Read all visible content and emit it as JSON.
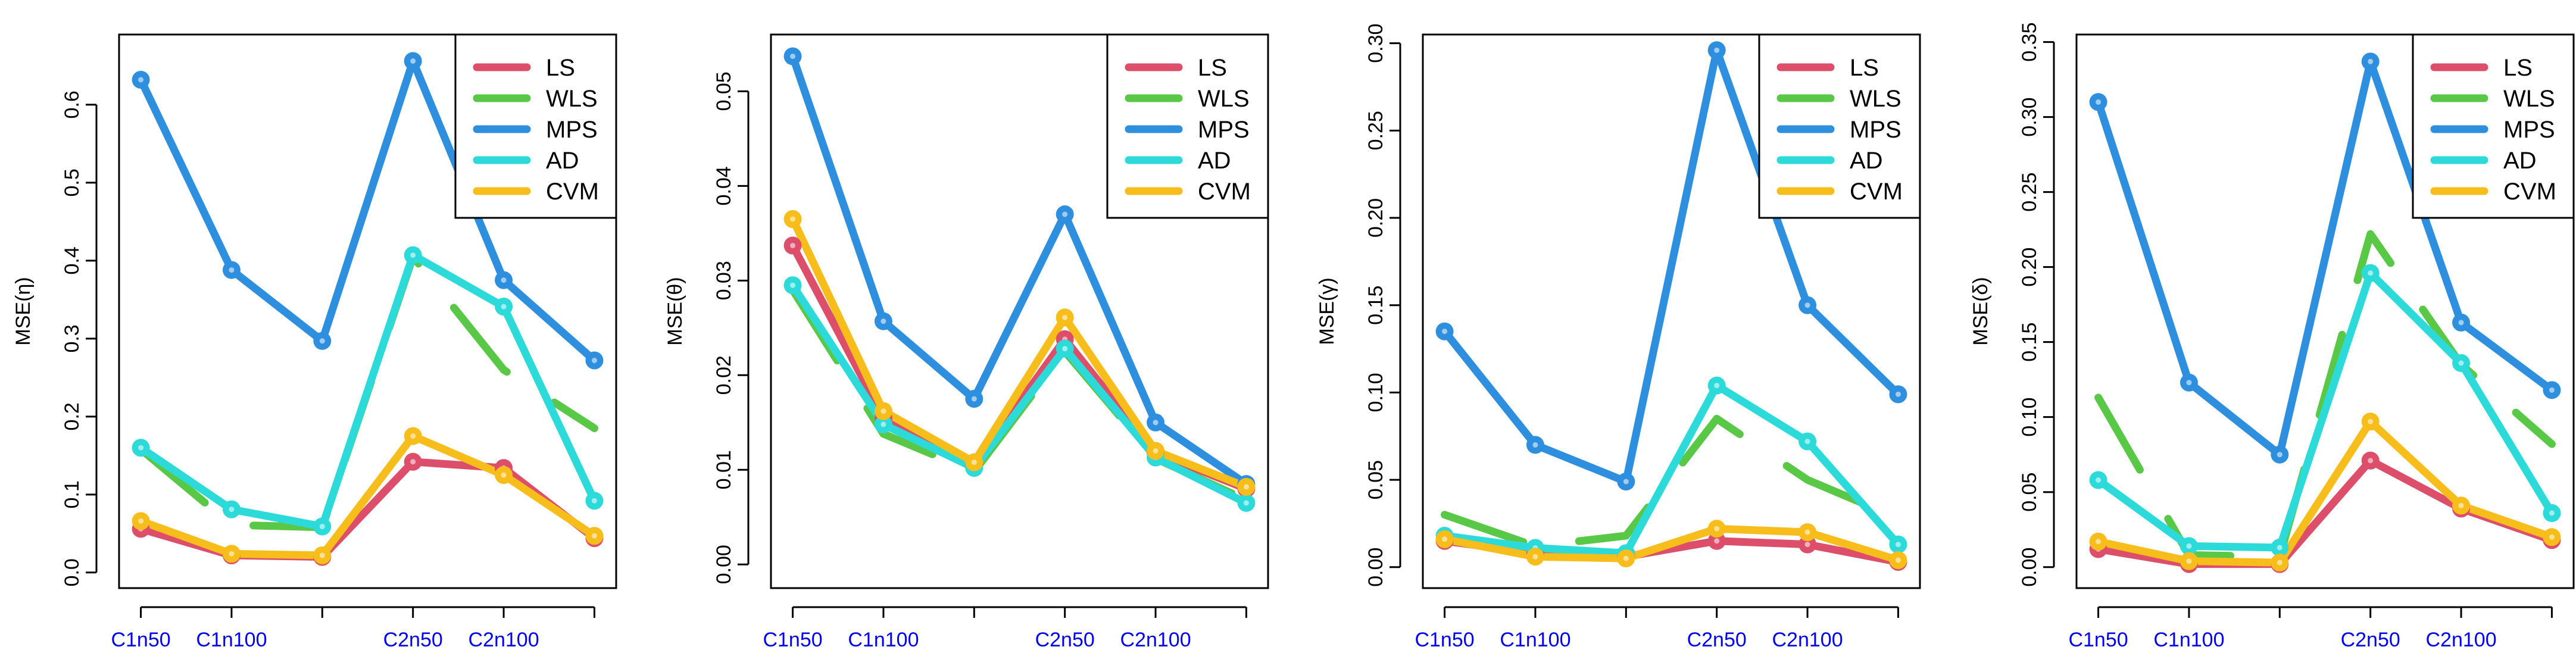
{
  "colors": {
    "LS": "#dc4e6a",
    "WLS": "#5ac847",
    "MPS": "#2f8fdf",
    "AD": "#2ddada",
    "CVM": "#f6bd1b"
  },
  "chart_data": [
    {
      "type": "line",
      "ylabel": "MSE(η)",
      "ylim": [
        -0.02,
        0.69
      ],
      "yticks": [
        "0.0",
        "0.1",
        "0.2",
        "0.3",
        "0.4",
        "0.5",
        "0.6"
      ],
      "x_positions": [
        1,
        2,
        3,
        4,
        5,
        6
      ],
      "tick_labels": [
        "C1n50",
        "C1n100",
        "",
        "C2n50",
        "C2n100",
        ""
      ],
      "legend": [
        "LS",
        "WLS",
        "MPS",
        "AD",
        "CVM"
      ],
      "series": [
        {
          "name": "LS",
          "style": "solid",
          "markers": true,
          "values": [
            0.056,
            0.022,
            0.02,
            0.142,
            0.134,
            0.044
          ]
        },
        {
          "name": "WLS",
          "style": "dashed",
          "markers": false,
          "values": [
            0.158,
            0.061,
            0.058,
            0.405,
            0.26,
            0.185
          ]
        },
        {
          "name": "MPS",
          "style": "solid",
          "markers": true,
          "values": [
            0.632,
            0.388,
            0.297,
            0.656,
            0.375,
            0.272
          ]
        },
        {
          "name": "AD",
          "style": "solid",
          "markers": true,
          "values": [
            0.16,
            0.081,
            0.059,
            0.407,
            0.341,
            0.092
          ]
        },
        {
          "name": "CVM",
          "style": "solid",
          "markers": true,
          "values": [
            0.066,
            0.024,
            0.022,
            0.175,
            0.125,
            0.047
          ]
        }
      ]
    },
    {
      "type": "line",
      "ylabel": "MSE(θ)",
      "ylim": [
        -0.0025,
        0.056
      ],
      "yticks": [
        "0.00",
        "0.01",
        "0.02",
        "0.03",
        "0.04",
        "0.05"
      ],
      "x_positions": [
        1,
        2,
        3,
        4,
        5,
        6
      ],
      "tick_labels": [
        "C1n50",
        "C1n100",
        "",
        "C2n50",
        "C2n100",
        ""
      ],
      "legend": [
        "LS",
        "WLS",
        "MPS",
        "AD",
        "CVM"
      ],
      "series": [
        {
          "name": "LS",
          "style": "solid",
          "markers": true,
          "values": [
            0.0337,
            0.0155,
            0.0105,
            0.0238,
            0.0118,
            0.008
          ]
        },
        {
          "name": "WLS",
          "style": "dashed",
          "markers": false,
          "values": [
            0.029,
            0.0138,
            0.0098,
            0.0225,
            0.0112,
            0.0068
          ]
        },
        {
          "name": "MPS",
          "style": "solid",
          "markers": true,
          "values": [
            0.0537,
            0.0257,
            0.0175,
            0.037,
            0.015,
            0.0085
          ]
        },
        {
          "name": "AD",
          "style": "solid",
          "markers": true,
          "values": [
            0.0295,
            0.0148,
            0.0102,
            0.0228,
            0.0113,
            0.0065
          ]
        },
        {
          "name": "CVM",
          "style": "solid",
          "markers": true,
          "values": [
            0.0365,
            0.0162,
            0.0108,
            0.0261,
            0.012,
            0.0082
          ]
        }
      ]
    },
    {
      "type": "line",
      "ylabel": "MSE(γ)",
      "ylim": [
        -0.012,
        0.305
      ],
      "yticks": [
        "0.00",
        "0.05",
        "0.10",
        "0.15",
        "0.20",
        "0.25",
        "0.30"
      ],
      "x_positions": [
        1,
        2,
        3,
        4,
        5,
        6
      ],
      "tick_labels": [
        "C1n50",
        "C1n100",
        "",
        "C2n50",
        "C2n100",
        ""
      ],
      "legend": [
        "LS",
        "WLS",
        "MPS",
        "AD",
        "CVM"
      ],
      "series": [
        {
          "name": "LS",
          "style": "solid",
          "markers": true,
          "values": [
            0.015,
            0.008,
            0.006,
            0.015,
            0.013,
            0.003
          ]
        },
        {
          "name": "WLS",
          "style": "dashed",
          "markers": false,
          "values": [
            0.03,
            0.012,
            0.018,
            0.085,
            0.05,
            0.028
          ]
        },
        {
          "name": "MPS",
          "style": "solid",
          "markers": true,
          "values": [
            0.135,
            0.07,
            0.049,
            0.296,
            0.15,
            0.099
          ]
        },
        {
          "name": "AD",
          "style": "solid",
          "markers": true,
          "values": [
            0.018,
            0.011,
            0.008,
            0.104,
            0.072,
            0.013
          ]
        },
        {
          "name": "CVM",
          "style": "solid",
          "markers": true,
          "values": [
            0.016,
            0.006,
            0.005,
            0.022,
            0.02,
            0.004
          ]
        }
      ]
    },
    {
      "type": "line",
      "ylabel": "MSE(δ)",
      "ylim": [
        -0.014,
        0.355
      ],
      "yticks": [
        "0.00",
        "0.05",
        "0.10",
        "0.15",
        "0.20",
        "0.25",
        "0.30",
        "0.35"
      ],
      "x_positions": [
        1,
        2,
        3,
        4,
        5,
        6
      ],
      "tick_labels": [
        "C1n50",
        "C1n100",
        "",
        "C2n50",
        "C2n100",
        ""
      ],
      "legend": [
        "LS",
        "WLS",
        "MPS",
        "AD",
        "CVM"
      ],
      "series": [
        {
          "name": "LS",
          "style": "solid",
          "markers": true,
          "values": [
            0.012,
            0.002,
            0.002,
            0.071,
            0.039,
            0.018
          ]
        },
        {
          "name": "WLS",
          "style": "dashed",
          "markers": false,
          "values": [
            0.113,
            0.008,
            0.007,
            0.222,
            0.135,
            0.082
          ]
        },
        {
          "name": "MPS",
          "style": "solid",
          "markers": true,
          "values": [
            0.31,
            0.123,
            0.075,
            0.337,
            0.163,
            0.118
          ]
        },
        {
          "name": "AD",
          "style": "solid",
          "markers": true,
          "values": [
            0.058,
            0.014,
            0.013,
            0.196,
            0.136,
            0.036
          ]
        },
        {
          "name": "CVM",
          "style": "solid",
          "markers": true,
          "values": [
            0.017,
            0.004,
            0.003,
            0.097,
            0.041,
            0.02
          ]
        }
      ]
    }
  ]
}
